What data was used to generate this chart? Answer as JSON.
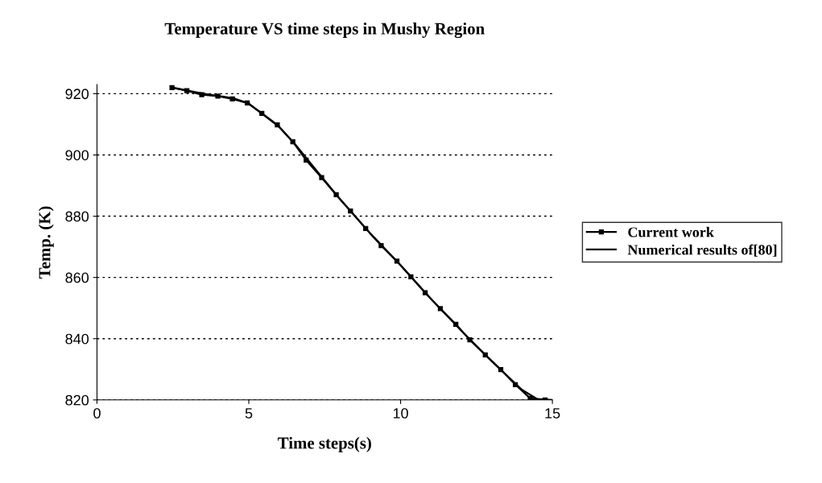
{
  "chart_data": {
    "type": "line",
    "title": "Temperature VS time steps in Mushy Region",
    "xlabel": "Time steps(s)",
    "ylabel": "Temp. (K)",
    "xlim": [
      0,
      15
    ],
    "xticks": [
      0,
      5,
      10,
      15
    ],
    "ylim": [
      820,
      923
    ],
    "yticks": [
      820,
      840,
      860,
      880,
      900,
      920
    ],
    "grid": "y",
    "legend": "right",
    "series": [
      {
        "name": "Current work",
        "color": "#000000",
        "marker": "square",
        "x": [
          2.47,
          2.96,
          3.45,
          3.98,
          4.46,
          4.95,
          5.43,
          5.94,
          6.45,
          6.89,
          7.4,
          7.88,
          8.35,
          8.85,
          9.36,
          9.88,
          10.34,
          10.81,
          11.31,
          11.82,
          12.28,
          12.79,
          13.3,
          13.78,
          14.27,
          14.76
        ],
        "values": [
          922,
          921,
          919.7,
          919.2,
          918.3,
          917,
          913.6,
          909.8,
          904.3,
          898.3,
          892.6,
          887,
          881.7,
          876,
          870.4,
          865.3,
          860.2,
          855,
          849.8,
          844.7,
          839.6,
          834.7,
          829.9,
          825,
          820.5,
          820
        ]
      },
      {
        "name": "Numerical results of[80]",
        "color": "#000000",
        "marker": "none",
        "x": [
          2.5,
          3.0,
          3.5,
          4.0,
          4.5,
          5.0,
          5.5,
          6.0,
          6.5,
          7.0,
          8.0,
          9.0,
          10.0,
          11.0,
          12.0,
          13.0,
          14.0,
          14.5,
          15.0
        ],
        "values": [
          922,
          921,
          920,
          919.3,
          918.5,
          916.8,
          913,
          909.2,
          903.8,
          897.7,
          885.6,
          874.4,
          864,
          853,
          842.6,
          832.7,
          823.3,
          820.3,
          820
        ]
      }
    ]
  }
}
